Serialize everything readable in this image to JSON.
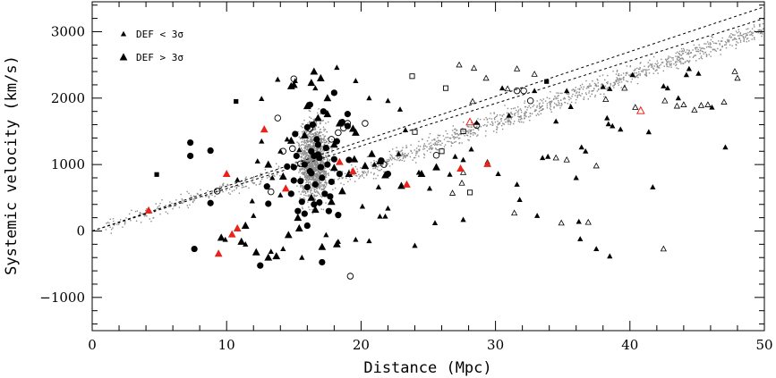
{
  "chart_data": {
    "type": "scatter",
    "title": "",
    "xlabel": "Distance (Mpc)",
    "ylabel": "Systemic velocity (km/s)",
    "xlim": [
      0,
      50
    ],
    "ylim": [
      -1500,
      3450
    ],
    "xticks_major": [
      0,
      10,
      20,
      30,
      40,
      50
    ],
    "yticks_major": [
      -1000,
      0,
      1000,
      2000,
      3000
    ],
    "xtick_labels": [
      "0",
      "10",
      "20",
      "30",
      "40",
      "50"
    ],
    "ytick_labels": [
      "−1000",
      "0",
      "1000",
      "2000",
      "3000"
    ],
    "legend": {
      "placement": "top-left",
      "entries": [
        {
          "marker": "small-triangle",
          "label": "DEF < 3σ"
        },
        {
          "marker": "large-triangle",
          "label": "DEF > 3σ"
        }
      ]
    },
    "colors": {
      "axis": "#000000",
      "highlight": "#e8231b",
      "background_points": "#8c8c8c"
    },
    "reference_lines": [
      {
        "name": "upper dashed line",
        "slope": 67.5,
        "intercept": 0
      },
      {
        "name": "lower dashed line",
        "slope": 64.0,
        "intercept": 0
      }
    ],
    "background_population": {
      "description": "grey background galaxies (schematic)",
      "hubble_flow_slope": 66,
      "components": [
        {
          "name": "local-flow",
          "x_range": [
            1,
            14
          ],
          "count": 180,
          "spread": 60
        },
        {
          "name": "virgo-cluster",
          "x_center": 16.5,
          "x_spread": 1.0,
          "y_center": 1050,
          "y_spread": 700,
          "count": 1400
        },
        {
          "name": "post-virgo-flow",
          "x_range": [
            18,
            50
          ],
          "count": 1100,
          "spread": 70
        }
      ]
    },
    "series": [
      {
        "name": "filled-circles",
        "marker": "filled-circle",
        "color": "#000000",
        "points": [
          [
            7.3,
            1130
          ],
          [
            7.3,
            1330
          ],
          [
            8.8,
            1210
          ],
          [
            8.8,
            420
          ],
          [
            7.6,
            -270
          ],
          [
            12.5,
            -520
          ],
          [
            14.5,
            970
          ],
          [
            15.0,
            760
          ],
          [
            15.0,
            960
          ],
          [
            15.2,
            1130
          ],
          [
            15.5,
            750
          ],
          [
            15.8,
            1000
          ],
          [
            16.0,
            660
          ],
          [
            16.2,
            900
          ],
          [
            16.3,
            1200
          ],
          [
            16.5,
            400
          ],
          [
            16.6,
            700
          ],
          [
            16.7,
            1380
          ],
          [
            16.8,
            1150
          ],
          [
            17.0,
            960
          ],
          [
            17.1,
            800
          ],
          [
            17.3,
            560
          ],
          [
            17.5,
            1000
          ],
          [
            17.6,
            300
          ],
          [
            17.8,
            740
          ],
          [
            18.0,
            1080
          ],
          [
            18.2,
            1350
          ],
          [
            18.4,
            860
          ],
          [
            18.0,
            2080
          ],
          [
            19.0,
            1580
          ],
          [
            19.0,
            1760
          ],
          [
            19.1,
            1070
          ],
          [
            21.5,
            1060
          ],
          [
            22.0,
            860
          ],
          [
            15.8,
            260
          ],
          [
            16.0,
            80
          ],
          [
            17.1,
            -470
          ],
          [
            18.6,
            1640
          ],
          [
            16.5,
            1130
          ],
          [
            13.0,
            670
          ],
          [
            15.1,
            1460
          ],
          [
            16.4,
            1600
          ],
          [
            17.7,
            520
          ],
          [
            16.2,
            1900
          ],
          [
            16.8,
            1300
          ],
          [
            13.1,
            410
          ],
          [
            17.0,
            960
          ],
          [
            16.3,
            870
          ],
          [
            14.8,
            560
          ],
          [
            16.9,
            1100
          ],
          [
            17.4,
            1250
          ],
          [
            18.3,
            240
          ],
          [
            15.6,
            440
          ],
          [
            16.0,
            1560
          ],
          [
            17.2,
            1800
          ],
          [
            16.9,
            430
          ],
          [
            15.3,
            300
          ]
        ]
      },
      {
        "name": "open-circles",
        "marker": "open-circle",
        "color": "#000000",
        "points": [
          [
            9.3,
            600
          ],
          [
            13.3,
            590
          ],
          [
            13.8,
            1700
          ],
          [
            14.2,
            1200
          ],
          [
            15.0,
            2290
          ],
          [
            16.2,
            1540
          ],
          [
            17.8,
            1380
          ],
          [
            18.3,
            1480
          ],
          [
            19.0,
            1620
          ],
          [
            20.3,
            1620
          ],
          [
            21.7,
            1000
          ],
          [
            25.6,
            1140
          ],
          [
            28.6,
            1590
          ],
          [
            32.1,
            2110
          ],
          [
            31.6,
            2110
          ],
          [
            32.6,
            1960
          ],
          [
            19.2,
            -680
          ],
          [
            15.5,
            1010
          ],
          [
            14.9,
            1240
          ],
          [
            18.7,
            1550
          ]
        ]
      },
      {
        "name": "filled-squares",
        "marker": "filled-square",
        "color": "#000000",
        "points": [
          [
            4.8,
            850
          ],
          [
            10.7,
            1950
          ],
          [
            33.8,
            2250
          ]
        ]
      },
      {
        "name": "open-squares",
        "marker": "open-square",
        "color": "#000000",
        "points": [
          [
            23.8,
            2330
          ],
          [
            26.3,
            2150
          ],
          [
            27.6,
            1500
          ],
          [
            28.1,
            580
          ],
          [
            24.0,
            1490
          ],
          [
            26.0,
            1200
          ]
        ]
      },
      {
        "name": "def-lt-3sigma",
        "marker": "small-filled-triangle",
        "color": "#000000",
        "points": [
          [
            15.1,
            2260
          ],
          [
            16.6,
            2150
          ],
          [
            17.0,
            2290
          ],
          [
            18.2,
            2460
          ],
          [
            16.5,
            1620
          ],
          [
            14.5,
            1380
          ],
          [
            14.0,
            1200
          ],
          [
            13.8,
            2280
          ],
          [
            12.6,
            1990
          ],
          [
            15.4,
            1220
          ],
          [
            19.6,
            2260
          ],
          [
            20.6,
            2000
          ],
          [
            22.0,
            1960
          ],
          [
            22.9,
            1830
          ],
          [
            23.3,
            1520
          ],
          [
            22.8,
            1160
          ],
          [
            21.3,
            660
          ],
          [
            21.0,
            1000
          ],
          [
            22.0,
            340
          ],
          [
            20.1,
            370
          ],
          [
            20.6,
            -150
          ],
          [
            21.8,
            220
          ],
          [
            24.0,
            -220
          ],
          [
            25.5,
            120
          ],
          [
            27.6,
            170
          ],
          [
            27.0,
            1120
          ],
          [
            27.6,
            1070
          ],
          [
            28.6,
            1630
          ],
          [
            30.5,
            2150
          ],
          [
            31.0,
            1740
          ],
          [
            31.6,
            700
          ],
          [
            32.9,
            2110
          ],
          [
            33.5,
            1100
          ],
          [
            34.5,
            1650
          ],
          [
            35.3,
            2110
          ],
          [
            35.6,
            1870
          ],
          [
            36.0,
            800
          ],
          [
            36.4,
            1260
          ],
          [
            36.7,
            1200
          ],
          [
            38.0,
            2170
          ],
          [
            38.5,
            2140
          ],
          [
            38.3,
            1700
          ],
          [
            38.4,
            1610
          ],
          [
            38.7,
            1580
          ],
          [
            39.3,
            1530
          ],
          [
            41.4,
            1490
          ],
          [
            41.7,
            660
          ],
          [
            42.8,
            2150
          ],
          [
            43.6,
            2000
          ],
          [
            44.2,
            2350
          ],
          [
            44.4,
            2440
          ],
          [
            45.1,
            2370
          ],
          [
            46.1,
            1860
          ],
          [
            47.1,
            1260
          ],
          [
            28.2,
            1230
          ],
          [
            29.4,
            1040
          ],
          [
            30.2,
            860
          ],
          [
            33.9,
            1120
          ],
          [
            31.8,
            470
          ],
          [
            33.1,
            230
          ],
          [
            36.3,
            -120
          ],
          [
            37.5,
            -270
          ],
          [
            36.2,
            140
          ],
          [
            38.5,
            -380
          ],
          [
            40.2,
            2350
          ],
          [
            42.5,
            2180
          ],
          [
            24.3,
            880
          ],
          [
            25.1,
            640
          ],
          [
            26.6,
            850
          ],
          [
            21.4,
            220
          ],
          [
            19.6,
            -130
          ],
          [
            18.3,
            -160
          ],
          [
            17.4,
            -60
          ],
          [
            9.9,
            -130
          ],
          [
            11.4,
            -200
          ],
          [
            13.3,
            -310
          ],
          [
            12.0,
            230
          ],
          [
            10.8,
            770
          ],
          [
            13.4,
            800
          ],
          [
            12.3,
            1050
          ],
          [
            14.0,
            540
          ],
          [
            12.6,
            1350
          ],
          [
            14.2,
            -270
          ],
          [
            15.6,
            -400
          ],
          [
            11.9,
            450
          ]
        ]
      },
      {
        "name": "open-small-triangles",
        "marker": "small-open-triangle",
        "color": "#000000",
        "points": [
          [
            27.3,
            2500
          ],
          [
            28.4,
            2450
          ],
          [
            29.3,
            2300
          ],
          [
            31.6,
            2440
          ],
          [
            28.3,
            1950
          ],
          [
            30.9,
            2140
          ],
          [
            32.9,
            2360
          ],
          [
            34.5,
            1100
          ],
          [
            35.3,
            1070
          ],
          [
            39.6,
            2150
          ],
          [
            40.4,
            1860
          ],
          [
            42.6,
            1960
          ],
          [
            44.0,
            1900
          ],
          [
            45.3,
            1890
          ],
          [
            47.8,
            2400
          ],
          [
            48.0,
            2300
          ],
          [
            47.0,
            1940
          ],
          [
            42.5,
            -270
          ],
          [
            36.9,
            130
          ],
          [
            37.5,
            980
          ],
          [
            34.9,
            120
          ],
          [
            31.4,
            270
          ],
          [
            27.6,
            880
          ],
          [
            27.5,
            720
          ],
          [
            26.8,
            570
          ],
          [
            38.2,
            1980
          ],
          [
            43.5,
            1880
          ],
          [
            44.8,
            1820
          ],
          [
            45.8,
            1900
          ]
        ]
      },
      {
        "name": "def-gt-3sigma",
        "marker": "large-filled-triangle",
        "color": "#000000",
        "points": [
          [
            15.0,
            2200
          ],
          [
            16.5,
            2400
          ],
          [
            17.0,
            2300
          ],
          [
            16.3,
            2230
          ],
          [
            14.8,
            2180
          ],
          [
            16.0,
            1880
          ],
          [
            17.5,
            2000
          ],
          [
            19.4,
            1540
          ],
          [
            15.8,
            1440
          ],
          [
            17.5,
            1760
          ],
          [
            18.4,
            1620
          ],
          [
            19.6,
            1480
          ],
          [
            20.8,
            1160
          ],
          [
            21.4,
            1050
          ],
          [
            18.0,
            1300
          ],
          [
            19.5,
            1080
          ],
          [
            20.3,
            980
          ],
          [
            21.8,
            840
          ],
          [
            23.0,
            680
          ],
          [
            24.5,
            860
          ],
          [
            25.6,
            960
          ],
          [
            18.6,
            600
          ],
          [
            19.1,
            860
          ],
          [
            17.8,
            440
          ],
          [
            16.6,
            320
          ],
          [
            15.3,
            200
          ],
          [
            14.6,
            -60
          ],
          [
            13.1,
            -400
          ],
          [
            13.7,
            -380
          ],
          [
            12.2,
            -320
          ],
          [
            11.1,
            -160
          ],
          [
            9.6,
            -100
          ],
          [
            11.4,
            80
          ],
          [
            15.4,
            40
          ],
          [
            17.1,
            -240
          ],
          [
            18.2,
            -200
          ],
          [
            16.3,
            500
          ],
          [
            14.2,
            820
          ],
          [
            13.1,
            1000
          ],
          [
            14.8,
            1360
          ],
          [
            16.8,
            1700
          ],
          [
            18.0,
            950
          ]
        ]
      },
      {
        "name": "highlight-filled-triangles",
        "marker": "large-filled-triangle",
        "color": "#e8231b",
        "points": [
          [
            4.2,
            310
          ],
          [
            9.4,
            -340
          ],
          [
            10.4,
            -50
          ],
          [
            10.8,
            40
          ],
          [
            10.0,
            860
          ],
          [
            12.8,
            1530
          ],
          [
            14.4,
            640
          ],
          [
            19.4,
            900
          ],
          [
            23.4,
            700
          ],
          [
            27.4,
            940
          ],
          [
            29.4,
            1010
          ],
          [
            18.4,
            1040
          ]
        ]
      },
      {
        "name": "highlight-open-triangles",
        "marker": "large-open-triangle",
        "color": "#e8231b",
        "points": [
          [
            28.1,
            1640
          ],
          [
            40.8,
            1810
          ]
        ]
      }
    ]
  }
}
